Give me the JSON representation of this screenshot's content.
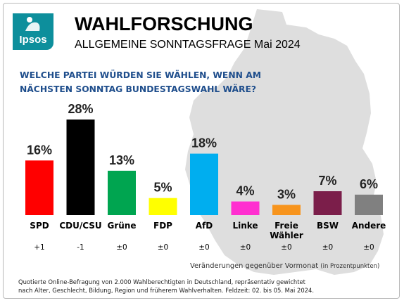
{
  "header": {
    "logo_text": "Ipsos",
    "title": "WAHLFORSCHUNG",
    "subtitle": "ALLGEMEINE SONNTAGSFRAGE Mai 2024"
  },
  "question": {
    "line1": "WELCHE PARTEI WÜRDEN SIE WÄHLEN, WENN AM",
    "line2": "NÄCHSTEN SONNTAG BUNDESTAGSWAHL WÄRE?"
  },
  "chart_data": {
    "type": "bar",
    "categories": [
      "SPD",
      "CDU/CSU",
      "Grüne",
      "FDP",
      "AfD",
      "Linke",
      "Freie\nWähler",
      "BSW",
      "Andere"
    ],
    "values": [
      16,
      28,
      13,
      5,
      18,
      4,
      3,
      7,
      6
    ],
    "value_labels": [
      "16%",
      "28%",
      "13%",
      "5%",
      "18%",
      "4%",
      "3%",
      "7%",
      "6%"
    ],
    "changes": [
      "+1",
      "-1",
      "±0",
      "±0",
      "±0",
      "±0",
      "±0",
      "±0",
      "±0"
    ],
    "colors": [
      "#ff0000",
      "#000000",
      "#00a550",
      "#ffff00",
      "#00aeef",
      "#ff2fd0",
      "#f7941d",
      "#7b1e4a",
      "#808080"
    ],
    "unit": "%",
    "ylim": [
      0,
      28
    ]
  },
  "footnote": {
    "label": "Veränderungen gegenüber Vormonat",
    "unit": "(in Prozentpunkten)"
  },
  "source": {
    "line1": "Quotierte Online-Befragung von 2.000 Wahlberechtigten in Deutschland, repräsentativ gewichtet",
    "line2": "nach Alter, Geschlecht, Bildung, Region und früherem Wahlverhalten. Feldzeit: 02. bis 05. Mai 2024."
  },
  "colors": {
    "accent": "#1f4e8c",
    "logo": "#0d8f9c",
    "map": "#dcdcdc"
  }
}
